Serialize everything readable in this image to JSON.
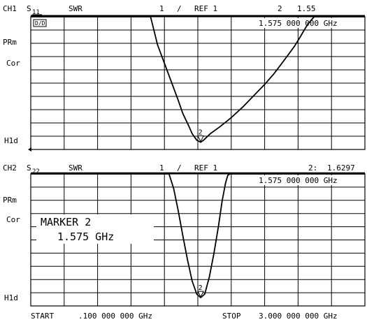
{
  "footer": {
    "start_label": "START",
    "start_value": ".100 000 000 GHz",
    "stop_label": "STOP",
    "stop_value": "3.000 000 000 GHz"
  },
  "chart_data": [
    {
      "type": "line",
      "channel": "CH1",
      "param_main": "S",
      "param_sub": "11",
      "format": "SWR",
      "scale": "1",
      "scale_sep": "/",
      "ref": "REF 1",
      "marker_readout_num": "2",
      "marker_readout_value": "1.55",
      "marker_freq": "1.575 000 000 GHz",
      "box_flag": "D/D",
      "side_labels": [
        "PRm",
        "Cor",
        "H1d"
      ],
      "marker_label": "2",
      "x_range": [
        0.1,
        3.0
      ],
      "y_range": [
        1,
        11
      ],
      "grid": true,
      "divisions": {
        "x": 10,
        "y": 10
      },
      "marker": {
        "x": 1.575,
        "y": 1.55
      },
      "series": [
        {
          "x": [
            0.1,
            1.14,
            1.16,
            1.2,
            1.26,
            1.32,
            1.38,
            1.42,
            1.47,
            1.5,
            1.54,
            1.575,
            1.6,
            1.66,
            1.74,
            1.84,
            1.94,
            2.04,
            2.13,
            2.21,
            2.28,
            2.34,
            2.39,
            2.44,
            2.48,
            2.51,
            2.53,
            2.55,
            2.56,
            3.0
          ],
          "y": [
            11.0,
            11.0,
            10.3,
            8.9,
            7.5,
            6.1,
            4.7,
            3.7,
            2.8,
            2.2,
            1.7,
            1.55,
            1.7,
            2.2,
            2.7,
            3.4,
            4.2,
            5.1,
            5.9,
            6.7,
            7.5,
            8.2,
            8.8,
            9.5,
            10.1,
            10.5,
            10.7,
            10.9,
            11.0,
            11.0
          ]
        }
      ]
    },
    {
      "type": "line",
      "channel": "CH2",
      "param_main": "S",
      "param_sub": "22",
      "format": "SWR",
      "scale": "1",
      "scale_sep": "/",
      "ref": "REF 1",
      "marker_readout_num": "2:",
      "marker_readout_value": "1.6297",
      "marker_freq": "1.575 000 000 GHz",
      "side_labels": [
        "PRm",
        "Cor",
        "H1d"
      ],
      "marker_label": "2",
      "annotation": {
        "line1": "MARKER 2",
        "line2": "1.575 GHz"
      },
      "x_range": [
        0.1,
        3.0
      ],
      "y_range": [
        1,
        11
      ],
      "grid": true,
      "divisions": {
        "x": 10,
        "y": 10
      },
      "marker": {
        "x": 1.575,
        "y": 1.6297
      },
      "series": [
        {
          "x": [
            0.1,
            1.3,
            1.34,
            1.38,
            1.42,
            1.46,
            1.5,
            1.54,
            1.575,
            1.61,
            1.65,
            1.69,
            1.73,
            1.76,
            1.79,
            1.81,
            1.83,
            3.0
          ],
          "y": [
            11.0,
            11.0,
            9.9,
            8.2,
            6.3,
            4.5,
            2.9,
            1.9,
            1.63,
            1.9,
            3.2,
            5.0,
            7.1,
            8.9,
            10.3,
            10.9,
            11.0,
            11.0
          ]
        }
      ]
    }
  ]
}
